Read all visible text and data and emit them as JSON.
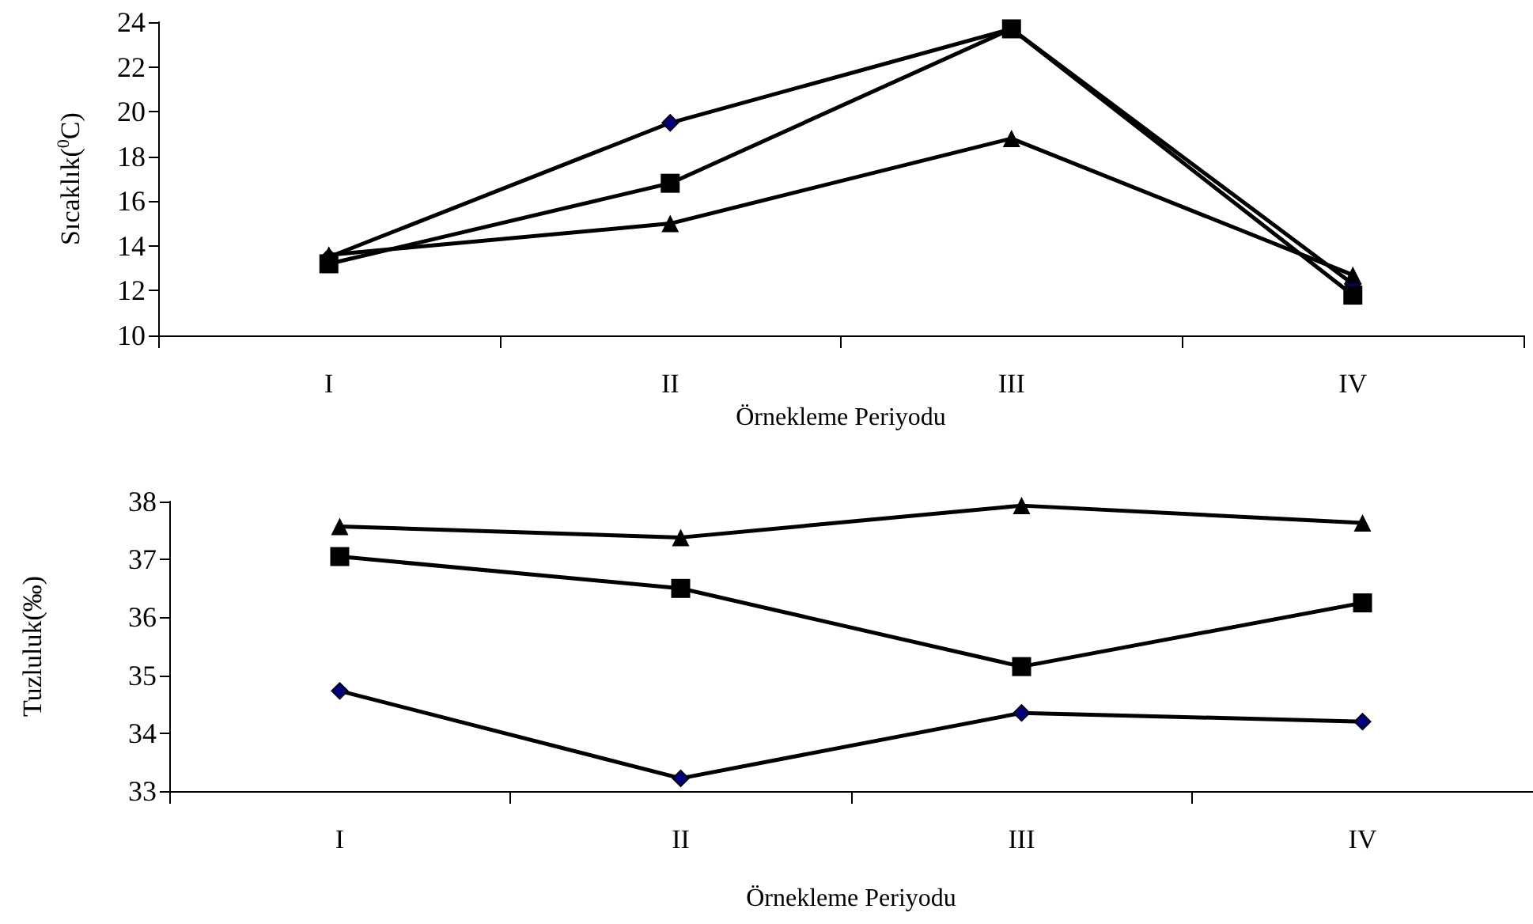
{
  "chart_data": [
    {
      "type": "line",
      "xlabel": "Örnekleme Periyodu",
      "ylabel": "Sıcaklık($^{0}$C)",
      "categories": [
        "I",
        "II",
        "III",
        "IV"
      ],
      "ylim": [
        10,
        24
      ],
      "yticks": [
        10,
        12,
        14,
        16,
        18,
        20,
        22,
        24
      ],
      "series": [
        {
          "color": "#000080",
          "marker": "diamond",
          "values": [
            13.5,
            19.5,
            23.7,
            12.3
          ]
        },
        {
          "color": "#000000",
          "marker": "square",
          "values": [
            13.2,
            16.8,
            23.7,
            11.8
          ]
        },
        {
          "color": "#000000",
          "marker": "triangle",
          "values": [
            13.6,
            15.0,
            18.8,
            12.7
          ]
        }
      ]
    },
    {
      "type": "line",
      "xlabel": "Örnekleme Periyodu",
      "ylabel": "Tuzluluk(‰)",
      "categories": [
        "I",
        "II",
        "III",
        "IV"
      ],
      "ylim": [
        33,
        38
      ],
      "yticks": [
        33,
        34,
        35,
        36,
        37,
        38
      ],
      "series": [
        {
          "color": "#000080",
          "marker": "diamond",
          "values": [
            34.73,
            33.22,
            34.35,
            34.2
          ]
        },
        {
          "color": "#000000",
          "marker": "square",
          "values": [
            37.05,
            36.5,
            35.15,
            36.25
          ]
        },
        {
          "color": "#000000",
          "marker": "triangle",
          "values": [
            37.57,
            37.38,
            37.93,
            37.63
          ]
        }
      ]
    }
  ]
}
